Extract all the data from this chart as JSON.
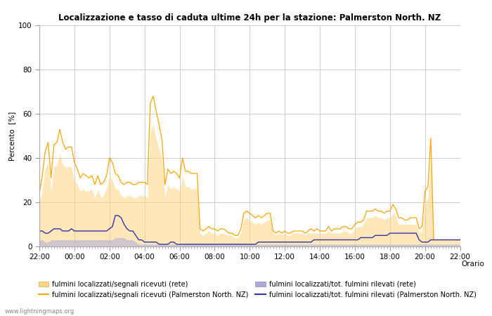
{
  "title": "Localizzazione e tasso di caduta ultime 24h per la stazione: Palmerston North. NZ",
  "xlabel": "Orario",
  "ylabel": "Percento  [%]",
  "ylim": [
    0,
    100
  ],
  "yticks": [
    0,
    20,
    40,
    60,
    80,
    100
  ],
  "xtick_labels": [
    "22:00",
    "00:00",
    "02:00",
    "04:00",
    "06:00",
    "08:00",
    "10:00",
    "12:00",
    "14:00",
    "16:00",
    "18:00",
    "20:00",
    "22:00"
  ],
  "color_orange_line": "#FFA500",
  "color_orange_fill": "#FFD580",
  "color_blue_line": "#3333AA",
  "color_blue_fill": "#AAAADD",
  "bg_color": "#FFFFFF",
  "grid_color": "#CCCCCC",
  "watermark": "www.lightningmaps.org",
  "legend": [
    {
      "label": "fulmini localizzati/segnali ricevuti (rete)",
      "type": "fill",
      "color": "#FFD580"
    },
    {
      "label": "fulmini localizzati/segnali ricevuti (Palmerston North. NZ)",
      "type": "line",
      "color": "#FFA500"
    },
    {
      "label": "fulmini localizzati/tot. fulmini rilevati (rete)",
      "type": "fill",
      "color": "#AAAADD"
    },
    {
      "label": "fulmini localizzati/tot. fulmini rilevati (Palmerston North. NZ)",
      "type": "line",
      "color": "#3333AA"
    }
  ],
  "n_points": 145,
  "orange_line_y": [
    24,
    32,
    43,
    47,
    31,
    46,
    47,
    53,
    47,
    44,
    45,
    45,
    38,
    35,
    31,
    33,
    32,
    31,
    32,
    28,
    32,
    28,
    29,
    32,
    40,
    38,
    33,
    32,
    29,
    28,
    29,
    29,
    28,
    28,
    29,
    29,
    29,
    28,
    65,
    68,
    61,
    55,
    48,
    28,
    35,
    33,
    34,
    33,
    31,
    40,
    34,
    34,
    33,
    33,
    33,
    8,
    7,
    8,
    9,
    8,
    8,
    7,
    8,
    8,
    7,
    6,
    6,
    5,
    5,
    8,
    15,
    16,
    15,
    14,
    13,
    14,
    13,
    14,
    15,
    15,
    7,
    6,
    7,
    6,
    7,
    6,
    6,
    7,
    7,
    7,
    7,
    6,
    7,
    8,
    7,
    8,
    7,
    7,
    7,
    9,
    7,
    8,
    8,
    8,
    9,
    9,
    8,
    8,
    10,
    11,
    11,
    12,
    16,
    16,
    16,
    17,
    16,
    16,
    15,
    16,
    16,
    19,
    17,
    13,
    13,
    12,
    12,
    13,
    13,
    13,
    8,
    9,
    25,
    27,
    49,
    3,
    3,
    3,
    3,
    3,
    3,
    3,
    3,
    3,
    3
  ],
  "orange_fill_y": [
    20,
    25,
    35,
    38,
    25,
    36,
    37,
    42,
    37,
    36,
    36,
    36,
    30,
    28,
    25,
    26,
    25,
    25,
    26,
    22,
    26,
    22,
    23,
    26,
    32,
    30,
    26,
    26,
    23,
    22,
    23,
    23,
    22,
    22,
    23,
    23,
    23,
    22,
    52,
    55,
    49,
    44,
    39,
    22,
    28,
    26,
    27,
    26,
    25,
    32,
    27,
    27,
    26,
    26,
    26,
    6,
    5,
    6,
    7,
    6,
    6,
    5,
    6,
    6,
    5,
    5,
    5,
    4,
    4,
    6,
    12,
    13,
    12,
    11,
    10,
    11,
    10,
    11,
    12,
    12,
    6,
    5,
    6,
    5,
    6,
    5,
    5,
    6,
    6,
    6,
    6,
    5,
    6,
    6,
    6,
    6,
    6,
    6,
    6,
    7,
    6,
    6,
    6,
    6,
    7,
    7,
    6,
    6,
    8,
    9,
    9,
    10,
    13,
    13,
    13,
    14,
    13,
    13,
    12,
    13,
    13,
    15,
    14,
    10,
    10,
    10,
    10,
    10,
    10,
    10,
    6,
    7,
    20,
    22,
    40,
    3,
    3,
    3,
    3,
    3,
    3,
    3,
    3,
    3,
    3
  ],
  "blue_line_y": [
    7,
    7,
    6,
    6,
    7,
    8,
    8,
    8,
    7,
    7,
    7,
    8,
    7,
    7,
    7,
    7,
    7,
    7,
    7,
    7,
    7,
    7,
    7,
    7,
    8,
    9,
    14,
    14,
    13,
    10,
    8,
    7,
    7,
    5,
    3,
    3,
    2,
    2,
    2,
    2,
    2,
    1,
    1,
    1,
    1,
    2,
    2,
    1,
    1,
    1,
    1,
    1,
    1,
    1,
    1,
    1,
    1,
    1,
    1,
    1,
    1,
    1,
    1,
    1,
    1,
    1,
    1,
    1,
    1,
    1,
    1,
    1,
    1,
    1,
    1,
    2,
    2,
    2,
    2,
    2,
    2,
    2,
    2,
    2,
    2,
    2,
    2,
    2,
    2,
    2,
    2,
    2,
    2,
    2,
    3,
    3,
    3,
    3,
    3,
    3,
    3,
    3,
    3,
    3,
    3,
    3,
    3,
    3,
    3,
    3,
    4,
    4,
    4,
    4,
    4,
    5,
    5,
    5,
    5,
    5,
    6,
    6,
    6,
    6,
    6,
    6,
    6,
    6,
    6,
    6,
    3,
    2,
    2,
    2,
    3,
    3,
    3,
    3,
    3,
    3,
    3,
    3,
    3,
    3,
    3
  ],
  "blue_fill_y": [
    3,
    3,
    2,
    2,
    3,
    3,
    3,
    3,
    3,
    3,
    3,
    3,
    3,
    3,
    3,
    3,
    3,
    3,
    3,
    3,
    3,
    3,
    3,
    3,
    3,
    3,
    4,
    4,
    4,
    4,
    3,
    3,
    3,
    2,
    1,
    1,
    1,
    1,
    1,
    1,
    1,
    1,
    1,
    1,
    1,
    1,
    1,
    1,
    1,
    1,
    1,
    1,
    1,
    1,
    1,
    1,
    1,
    1,
    1,
    1,
    1,
    1,
    1,
    1,
    1,
    1,
    1,
    1,
    1,
    1,
    1,
    1,
    1,
    1,
    1,
    1,
    1,
    1,
    1,
    1,
    1,
    1,
    1,
    1,
    1,
    1,
    1,
    1,
    1,
    1,
    1,
    1,
    1,
    1,
    1,
    1,
    1,
    1,
    1,
    1,
    1,
    1,
    1,
    1,
    1,
    1,
    1,
    1,
    1,
    1,
    1,
    1,
    1,
    1,
    1,
    1,
    1,
    1,
    1,
    1,
    1,
    1,
    1,
    1,
    1,
    1,
    1,
    1,
    1,
    1,
    1,
    1,
    1,
    1,
    1,
    1,
    1,
    1,
    1,
    1,
    1,
    1,
    1,
    1,
    1
  ]
}
